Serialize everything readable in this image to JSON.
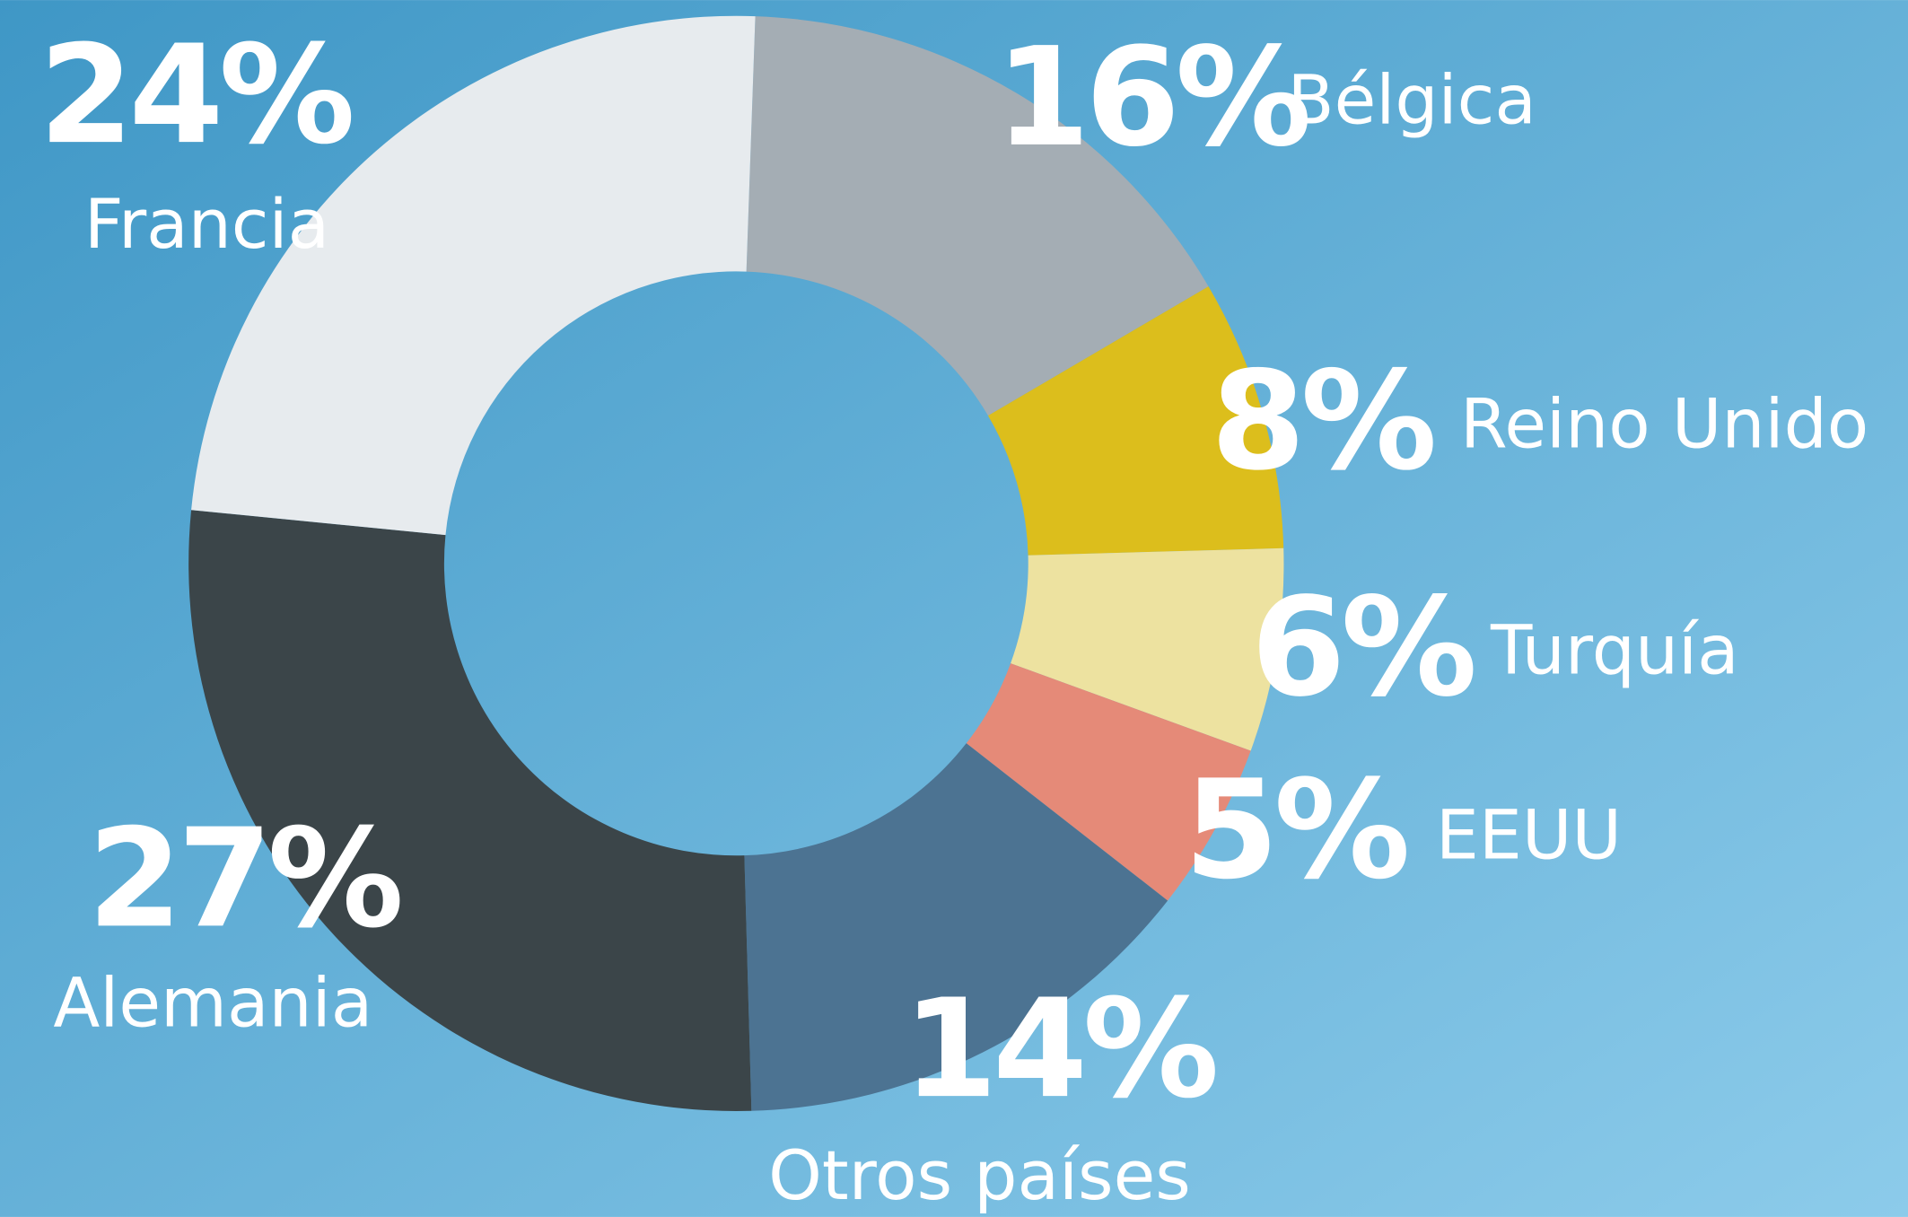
{
  "chart_data": {
    "type": "pie",
    "donut": true,
    "categories": [
      "Bélgica",
      "Reino Unido",
      "Turquía",
      "EEUU",
      "Otros países",
      "Alemania",
      "Francia"
    ],
    "values": [
      16,
      8,
      6,
      5,
      14,
      27,
      24
    ],
    "value_labels": [
      "16%",
      "8%",
      "6%",
      "5%",
      "14%",
      "27%",
      "24%"
    ],
    "colors": [
      "#a4adb4",
      "#dcbe1c",
      "#ede2a0",
      "#e58a78",
      "#4c7392",
      "#3b4549",
      "#e7ebee"
    ]
  }
}
